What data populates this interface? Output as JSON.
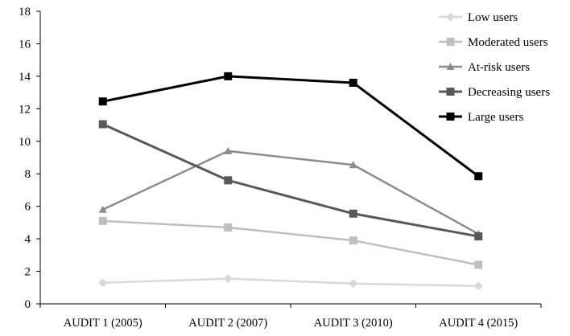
{
  "chart_data": {
    "type": "line",
    "title": "",
    "xlabel": "",
    "ylabel": "",
    "categories": [
      "AUDIT 1 (2005)",
      "AUDIT 2 (2007)",
      "AUDIT 3 (2010)",
      "AUDIT 4 (2015)"
    ],
    "y_ticks": [
      "0",
      "2",
      "4",
      "6",
      "8",
      "10",
      "12",
      "14",
      "16",
      "18"
    ],
    "ylim": [
      0,
      18
    ],
    "grid": false,
    "legend_position": "top-right",
    "series": [
      {
        "name": "Low users",
        "values": [
          1.3,
          1.55,
          1.25,
          1.1
        ],
        "color": "#d9d9d9",
        "marker": "diamond",
        "width": 2.5
      },
      {
        "name": "Moderated users",
        "values": [
          5.1,
          4.7,
          3.9,
          2.4
        ],
        "color": "#bfbfbf",
        "marker": "square",
        "width": 2.5
      },
      {
        "name": "At-risk users",
        "values": [
          5.8,
          9.4,
          8.55,
          4.3
        ],
        "color": "#8c8c8c",
        "marker": "triangle",
        "width": 2.5
      },
      {
        "name": "Decreasing users",
        "values": [
          11.05,
          7.6,
          5.55,
          4.15
        ],
        "color": "#595959",
        "marker": "square",
        "width": 3
      },
      {
        "name": "Large users",
        "values": [
          12.45,
          14.0,
          13.6,
          7.85
        ],
        "color": "#000000",
        "marker": "square",
        "width": 3
      }
    ]
  }
}
